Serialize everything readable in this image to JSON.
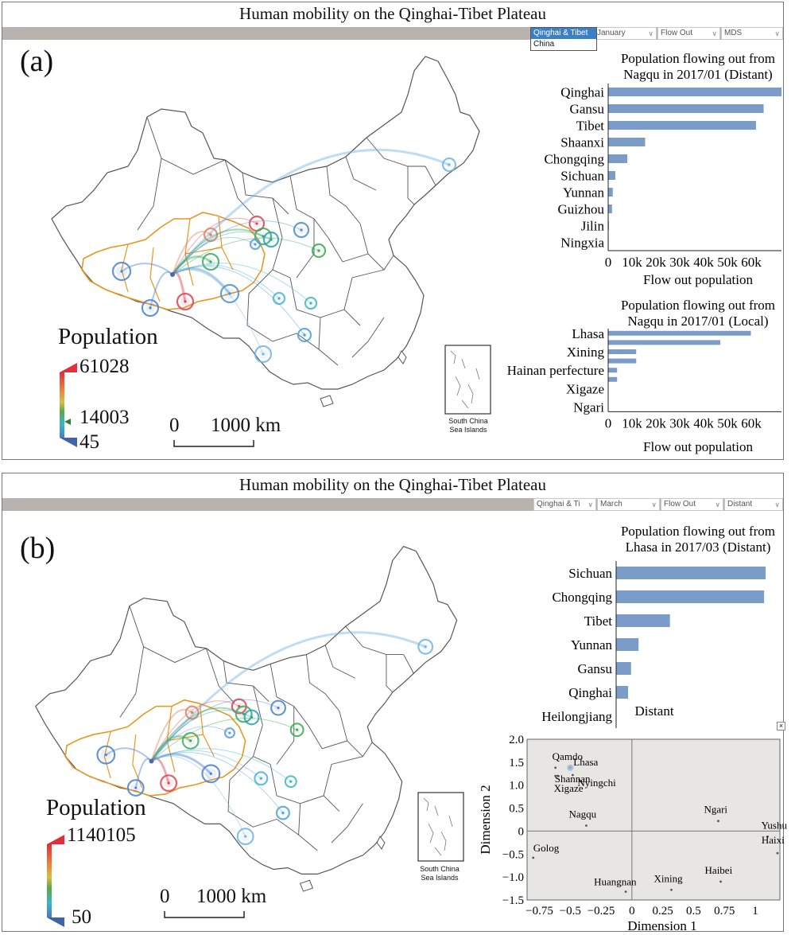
{
  "panel_a": {
    "label": "(a)",
    "title": "Human mobility on the Qinghai-Tibet Plateau",
    "toolbar": {
      "region_dropdown_options": [
        "Qinghai & Tibet",
        "China"
      ],
      "month": "January",
      "direction": "Flow Out",
      "layout": "MDS"
    },
    "legend": {
      "title": "Population",
      "max": "61028",
      "mid": "14003",
      "min": "45"
    },
    "scale_bar": {
      "zero": "0",
      "distance": "1000 km"
    },
    "inset_label": "South China\nSea Islands",
    "bar_chart_distant": {
      "title_line1": "Population flowing out from",
      "title_line2": "Nagqu in 2017/01 (Distant)",
      "xlabel": "Flow out population",
      "ticks": [
        "0",
        "10k",
        "20k",
        "30k",
        "40k",
        "50k",
        "60k"
      ]
    },
    "bar_chart_local": {
      "title_line1": "Population flowing out from",
      "title_line2": "Nagqu in 2017/01 (Local)",
      "xlabel": "Flow out population",
      "ticks": [
        "0",
        "10k",
        "20k",
        "30k",
        "40k",
        "50k",
        "60k"
      ]
    }
  },
  "panel_b": {
    "label": "(b)",
    "title": "Human mobility on the Qinghai-Tibet Plateau",
    "toolbar": {
      "region": "Qinghai & Ti",
      "month": "March",
      "direction": "Flow Out",
      "layout": "Distant"
    },
    "legend": {
      "title": "Population",
      "max": "1140105",
      "min": "50"
    },
    "scale_bar": {
      "zero": "0",
      "distance": "1000 km"
    },
    "inset_label": "South China\nSea Islands",
    "bar_chart_distant": {
      "title_line1": "Population flowing out from",
      "title_line2": "Lhasa in 2017/03 (Distant)",
      "xlabel": "Distant"
    },
    "mds": {
      "xlabel": "Dimension 1",
      "ylabel": "Dimension 2",
      "xticks": [
        "−0.75",
        "−0.5",
        "−0.25",
        "0",
        "0.25",
        "0.5",
        "0.75",
        "1"
      ],
      "yticks": [
        "2.0",
        "1.5",
        "1.0",
        "0.5",
        "0",
        "−0.5",
        "−1.0",
        "−1.5"
      ],
      "close_label": "×"
    }
  },
  "colors": {
    "bar": "#7b9cc8",
    "tibet_border": "#e8961e",
    "map_border": "#555555",
    "toolbar": "#b8b3ae",
    "active_option": "#3b7fc4"
  },
  "chart_data": [
    {
      "type": "bar",
      "title": "Population flowing out from Nagqu in 2017/01 (Distant)",
      "xlabel": "Flow out population",
      "categories": [
        "Qinghai",
        "Gansu",
        "Tibet",
        "Shaanxi",
        "Chongqing",
        "Sichuan",
        "Yunnan",
        "Guizhou",
        "Jilin",
        "Ningxia"
      ],
      "values": [
        68000,
        61000,
        58000,
        14500,
        7500,
        2800,
        1800,
        1500,
        300,
        200
      ],
      "xlim": [
        0,
        68000
      ]
    },
    {
      "type": "bar",
      "title": "Population flowing out from Nagqu in 2017/01 (Local)",
      "xlabel": "Flow out population",
      "categories": [
        "Lhasa",
        "",
        "Xining",
        "",
        "Hainan perfecture",
        "",
        "Xigaze",
        "",
        "Ngari"
      ],
      "values": [
        56000,
        44000,
        11000,
        11000,
        3500,
        3500,
        0,
        0,
        0
      ],
      "xlim": [
        0,
        68000
      ]
    },
    {
      "type": "bar",
      "title": "Population flowing out from Lhasa in 2017/03 (Distant)",
      "xlabel": "Distant",
      "categories": [
        "Sichuan",
        "Chongqing",
        "Tibet",
        "Yunnan",
        "Gansu",
        "Qinghai",
        "Heilongjiang"
      ],
      "values": [
        100,
        99,
        36,
        15,
        10,
        8,
        0
      ],
      "xlim": [
        0,
        100
      ]
    },
    {
      "type": "scatter",
      "xlabel": "Dimension 1",
      "ylabel": "Dimension 2",
      "xlim": [
        -0.85,
        1.2
      ],
      "ylim": [
        -1.5,
        2.0
      ],
      "points": [
        {
          "name": "Qamdo",
          "x": -0.62,
          "y": 1.38
        },
        {
          "name": "Lhasa",
          "x": -0.5,
          "y": 1.38
        },
        {
          "name": "Shannan",
          "x": -0.6,
          "y": 1.2
        },
        {
          "name": "Nyingchi",
          "x": -0.48,
          "y": 1.22
        },
        {
          "name": "Xigaze",
          "x": -0.62,
          "y": 1.2
        },
        {
          "name": "Nagqu",
          "x": -0.37,
          "y": 0.12
        },
        {
          "name": "Ngari",
          "x": 0.7,
          "y": 0.22
        },
        {
          "name": "Yushu",
          "x": 1.1,
          "y": -0.12
        },
        {
          "name": "Haixi",
          "x": 1.18,
          "y": -0.48
        },
        {
          "name": "Golog",
          "x": -0.8,
          "y": -0.58
        },
        {
          "name": "Haibei",
          "x": 0.72,
          "y": -1.1
        },
        {
          "name": "Xining",
          "x": 0.32,
          "y": -1.28
        },
        {
          "name": "Huangnan",
          "x": -0.05,
          "y": -1.32
        }
      ]
    }
  ]
}
